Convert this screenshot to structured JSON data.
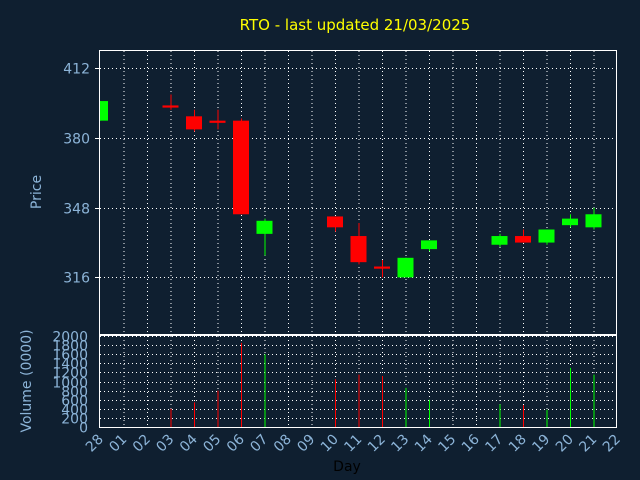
{
  "chart_data": {
    "type": "candlestick",
    "title": "RTO - last updated 21/03/2025",
    "ylabel": "Price",
    "ylabel_volume": "Volume (0000)",
    "xlabel": "Day",
    "ylim": [
      290,
      420
    ],
    "volume_ylim": [
      0,
      2000
    ],
    "price_ticks": [
      316,
      348,
      380,
      412
    ],
    "volume_ticks": [
      0,
      200,
      400,
      600,
      800,
      1000,
      1200,
      1400,
      1600,
      1800,
      2000
    ],
    "x_ticks": [
      "28",
      "01",
      "02",
      "03",
      "04",
      "05",
      "06",
      "07",
      "08",
      "09",
      "10",
      "11",
      "12",
      "13",
      "14",
      "15",
      "16",
      "17",
      "18",
      "19",
      "20",
      "21",
      "22"
    ],
    "grid": true,
    "colors": {
      "up": "#00ff00",
      "down": "#ff0000",
      "background": "#0f1f30",
      "grid": "#ffffff",
      "title": "#ffff00",
      "labels": "#8cb4d8"
    },
    "candles": [
      {
        "day": "28",
        "open": 388,
        "high": 397,
        "low": 388,
        "close": 397,
        "volume": 0
      },
      {
        "day": "03",
        "open": 395,
        "high": 400,
        "low": 393,
        "close": 394,
        "volume": 400
      },
      {
        "day": "04",
        "open": 390,
        "high": 393,
        "low": 383,
        "close": 384,
        "volume": 540
      },
      {
        "day": "05",
        "open": 388,
        "high": 393,
        "low": 384,
        "close": 387,
        "volume": 800
      },
      {
        "day": "06",
        "open": 388,
        "high": 389,
        "low": 345,
        "close": 345,
        "volume": 1850
      },
      {
        "day": "07",
        "open": 336,
        "high": 343,
        "low": 326,
        "close": 342,
        "volume": 1600
      },
      {
        "day": "10",
        "open": 344,
        "high": 344,
        "low": 337,
        "close": 339,
        "volume": 1050
      },
      {
        "day": "11",
        "open": 335,
        "high": 341,
        "low": 322,
        "close": 323,
        "volume": 1150
      },
      {
        "day": "12",
        "open": 321,
        "high": 324,
        "low": 316,
        "close": 320,
        "volume": 1120
      },
      {
        "day": "13",
        "open": 316,
        "high": 325,
        "low": 316,
        "close": 325,
        "volume": 860
      },
      {
        "day": "14",
        "open": 329,
        "high": 333,
        "low": 328,
        "close": 333,
        "volume": 600
      },
      {
        "day": "17",
        "open": 331,
        "high": 336,
        "low": 330,
        "close": 335,
        "volume": 500
      },
      {
        "day": "18",
        "open": 335,
        "high": 338,
        "low": 332,
        "close": 332,
        "volume": 480
      },
      {
        "day": "19",
        "open": 332,
        "high": 338,
        "low": 331,
        "close": 338,
        "volume": 380
      },
      {
        "day": "20",
        "open": 340,
        "high": 345,
        "low": 339,
        "close": 343,
        "volume": 1300
      },
      {
        "day": "21",
        "open": 339,
        "high": 348,
        "low": 338,
        "close": 345,
        "volume": 1150
      }
    ]
  }
}
